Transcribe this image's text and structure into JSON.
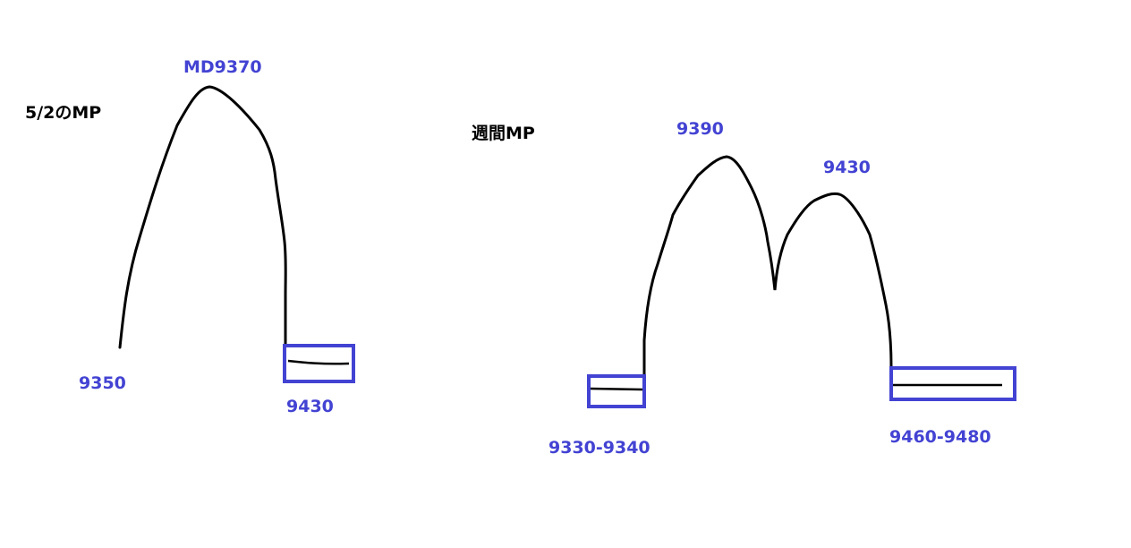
{
  "colors": {
    "label": "#4343d3",
    "curve": "#000000",
    "box": "#4343d3"
  },
  "left_diagram": {
    "title": "5/2のMP",
    "peak_label": "MD9370",
    "start_label": "9350",
    "end_label": "9430"
  },
  "right_diagram": {
    "title": "週間MP",
    "peak1_label": "9390",
    "peak2_label": "9430",
    "start_label": "9330-9340",
    "end_label": "9460-9480"
  }
}
